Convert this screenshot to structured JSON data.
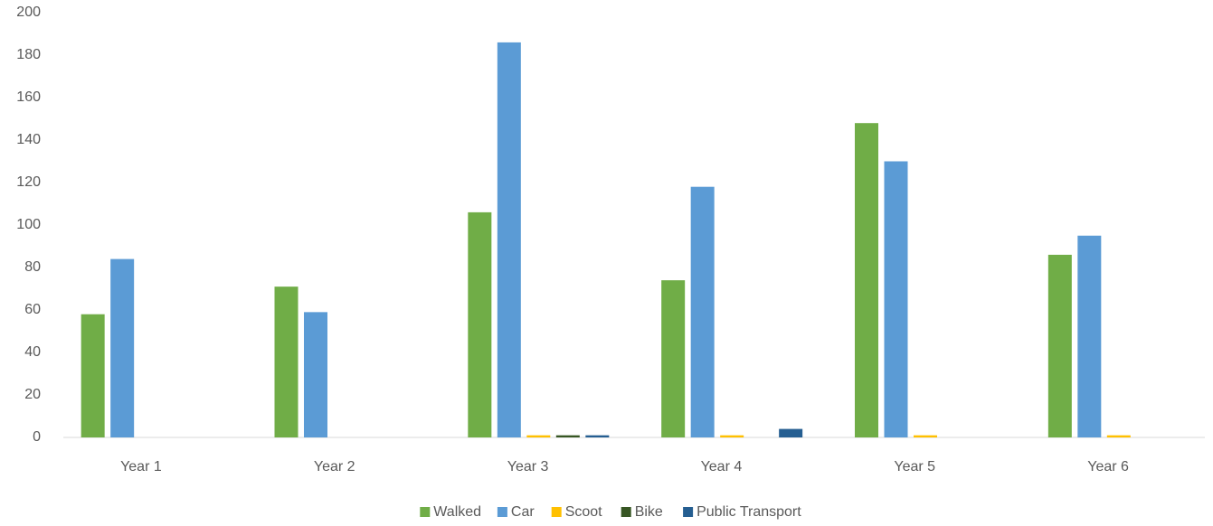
{
  "chart_data": {
    "type": "bar",
    "categories": [
      "Year 1",
      "Year 2",
      "Year 3",
      "Year 4",
      "Year 5",
      "Year 6"
    ],
    "series": [
      {
        "name": "Walked",
        "color": "#70ad47",
        "values": [
          58,
          71,
          106,
          74,
          148,
          86
        ]
      },
      {
        "name": "Car",
        "color": "#5b9bd5",
        "values": [
          84,
          59,
          186,
          118,
          130,
          95
        ]
      },
      {
        "name": "Scoot",
        "color": "#ffc000",
        "values": [
          0,
          0,
          1,
          1,
          1,
          1
        ]
      },
      {
        "name": "Bike",
        "color": "#375623",
        "values": [
          0,
          0,
          1,
          0,
          0,
          0
        ]
      },
      {
        "name": "Public Transport",
        "color": "#255e91",
        "values": [
          0,
          0,
          1,
          4,
          0,
          0
        ]
      }
    ],
    "ylim": [
      0,
      200
    ],
    "yticks": [
      0,
      20,
      40,
      60,
      80,
      100,
      120,
      140,
      160,
      180,
      200
    ],
    "grid": false,
    "legend": "bottom"
  }
}
